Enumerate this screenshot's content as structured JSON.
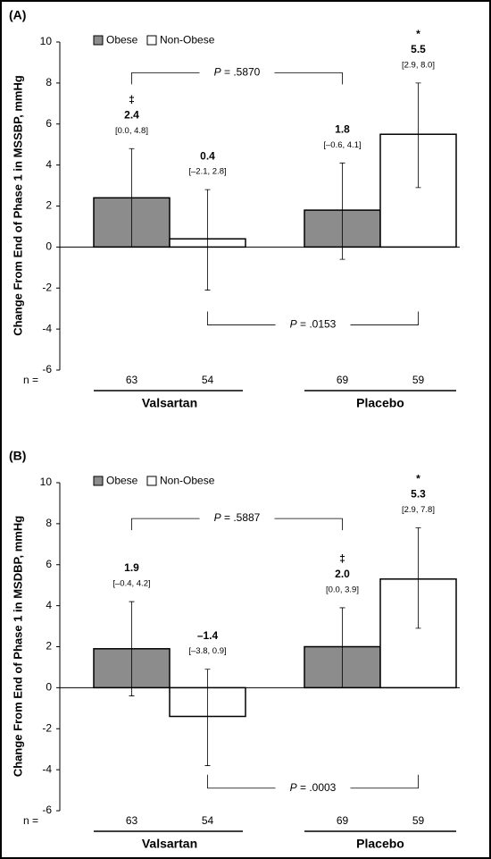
{
  "chart_data": [
    {
      "type": "bar",
      "panel_label": "(A)",
      "y_label": "Change From End of Phase 1 in MSSBP, mmHg",
      "categories": [
        "Valsartan",
        "Placebo"
      ],
      "n_label": "n =",
      "ylim": [
        -6,
        10
      ],
      "yticks": [
        -6,
        -4,
        -2,
        0,
        2,
        4,
        6,
        8,
        10
      ],
      "legend": "top-left",
      "series": [
        {
          "name": "Obese",
          "color": "#8c8c8c",
          "values": [
            2.4,
            1.8
          ],
          "value_labels": [
            "2.4",
            "1.8"
          ],
          "ci_low": [
            0.0,
            -0.6
          ],
          "ci_high": [
            4.8,
            4.1
          ],
          "ci_labels": [
            "[0.0, 4.8]",
            "[–0.6, 4.1]"
          ],
          "symbols": [
            "‡",
            null
          ],
          "n": [
            63,
            69
          ]
        },
        {
          "name": "Non-Obese",
          "color": "#ffffff",
          "values": [
            0.4,
            5.5
          ],
          "value_labels": [
            "0.4",
            "5.5"
          ],
          "ci_low": [
            -2.1,
            2.9
          ],
          "ci_high": [
            2.8,
            8.0
          ],
          "ci_labels": [
            "[–2.1, 2.8]",
            "[2.9, 8.0]"
          ],
          "symbols": [
            null,
            "*"
          ],
          "n": [
            54,
            59
          ]
        }
      ],
      "comparisons": [
        "P = .5870",
        "P = .0153"
      ]
    },
    {
      "type": "bar",
      "panel_label": "(B)",
      "y_label": "Change From End of Phase 1 in MSDBP, mmHg",
      "categories": [
        "Valsartan",
        "Placebo"
      ],
      "n_label": "n =",
      "ylim": [
        -6,
        10
      ],
      "yticks": [
        -6,
        -4,
        -2,
        0,
        2,
        4,
        6,
        8,
        10
      ],
      "legend": "top-left",
      "series": [
        {
          "name": "Obese",
          "color": "#8c8c8c",
          "values": [
            1.9,
            2.0
          ],
          "value_labels": [
            "1.9",
            "2.0"
          ],
          "ci_low": [
            -0.4,
            0.0
          ],
          "ci_high": [
            4.2,
            3.9
          ],
          "ci_labels": [
            "[–0.4, 4.2]",
            "[0.0, 3.9]"
          ],
          "symbols": [
            null,
            "‡"
          ],
          "n": [
            63,
            69
          ]
        },
        {
          "name": "Non-Obese",
          "color": "#ffffff",
          "values": [
            -1.4,
            5.3
          ],
          "value_labels": [
            "–1.4",
            "5.3"
          ],
          "ci_low": [
            -3.8,
            2.9
          ],
          "ci_high": [
            0.9,
            7.8
          ],
          "ci_labels": [
            "[–3.8, 0.9]",
            "[2.9, 7.8]"
          ],
          "symbols": [
            null,
            "*"
          ],
          "n": [
            54,
            59
          ]
        }
      ],
      "comparisons": [
        "P = .5887",
        "P = .0003"
      ]
    }
  ]
}
